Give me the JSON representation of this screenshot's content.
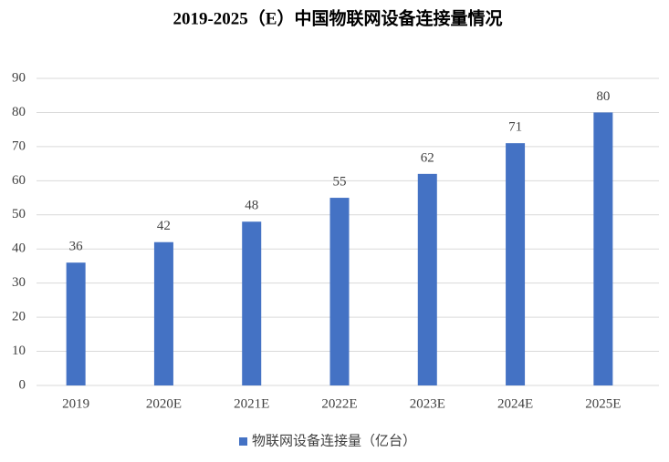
{
  "chart_data": {
    "type": "bar",
    "title": "2019-2025（E）中国物联网设备连接量情况",
    "categories": [
      "2019",
      "2020E",
      "2021E",
      "2022E",
      "2023E",
      "2024E",
      "2025E"
    ],
    "series": [
      {
        "name": "物联网设备连接量（亿台）",
        "color": "#4472c4",
        "values": [
          36,
          42,
          48,
          55,
          62,
          71,
          80
        ]
      }
    ],
    "ylim": [
      0,
      90
    ],
    "yticks": [
      0,
      10,
      20,
      30,
      40,
      50,
      60,
      70,
      80,
      90
    ],
    "grid": true,
    "legend": "bottom"
  }
}
